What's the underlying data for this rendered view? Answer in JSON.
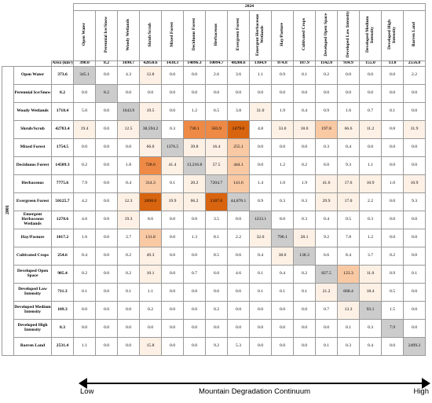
{
  "year_2024": "2024",
  "year_2001": "2001",
  "area_label": "Area (km²)",
  "classes": [
    "Open Water",
    "Perennial Ice/Snow",
    "Woody Wetlands",
    "Shrub/Scrub",
    "Mixed Forest",
    "Deciduous Forest",
    "Herbaceous",
    "Evergreen Forest",
    "Emergent Herbaceous Wetlands",
    "Hay/Pasture",
    "Cultivated Crops",
    "Developed Open Space",
    "Developed Low Intensity",
    "Developed Medium Intensity",
    "Developed High Intensity",
    "Barren Land"
  ],
  "col_areas_2024": [
    "390.0",
    "8.2",
    "1690.7",
    "42850.6",
    "1438.3",
    "14096.3",
    "10094.7",
    "48200.6",
    "1304.9",
    "874.8",
    "187.9",
    "1142.0",
    "934.9",
    "155.0",
    "13.0",
    "2556.8"
  ],
  "row_areas_2001": [
    "373.6",
    "8.2",
    "1718.4",
    "42783.4",
    "1754.5",
    "14509.3",
    "7775.6",
    "50125.7",
    "1278.6",
    "1017.2",
    "254.6",
    "985.4",
    "711.3",
    "109.3",
    "8.3",
    "2531.4"
  ],
  "cells": [
    [
      "345.1",
      "0.0",
      "4.3",
      "12.8",
      "0.0",
      "0.0",
      "2.6",
      "3.6",
      "1.1",
      "0.9",
      "0.1",
      "0.2",
      "0.0",
      "0.0",
      "0.0",
      "2.2"
    ],
    [
      "0.0",
      "8.2",
      "0.0",
      "0.0",
      "0.0",
      "0.0",
      "0.0",
      "0.0",
      "0.0",
      "0.0",
      "0.0",
      "0.0",
      "0.0",
      "0.0",
      "0.0",
      "0.0"
    ],
    [
      "5.0",
      "0.0",
      "1643.9",
      "19.5",
      "0.0",
      "1.2",
      "6.5",
      "3.8",
      "31.0",
      "1.9",
      "0.4",
      "0.9",
      "1.6",
      "0.7",
      "0.1",
      "0.0"
    ],
    [
      "19.4",
      "0.0",
      "12.5",
      "38,594.2",
      "0.3",
      "730.1",
      "583.9",
      "2479.0",
      "4.8",
      "33.0",
      "18.0",
      "197.8",
      "66.6",
      "11.2",
      "0.8",
      "31.9"
    ],
    [
      "0.0",
      "0.0",
      "0.0",
      "66.0",
      "1376.5",
      "39.8",
      "16.4",
      "255.1",
      "0.0",
      "0.0",
      "0.0",
      "0.3",
      "0.4",
      "0.0",
      "0.0",
      "0.0"
    ],
    [
      "0.2",
      "0.0",
      "1.8",
      "728.6",
      "41.4",
      "13,216.8",
      "57.5",
      "444.1",
      "0.0",
      "1.2",
      "0.2",
      "6.0",
      "9.3",
      "1.1",
      "0.0",
      "0.0"
    ],
    [
      "7.9",
      "0.0",
      "0.4",
      "314.3",
      "0.1",
      "20.2",
      "7204.7",
      "141.6",
      "1.4",
      "1.0",
      "1.9",
      "41.6",
      "17.6",
      "10.9",
      "1.0",
      "10.9"
    ],
    [
      "4.2",
      "0.0",
      "12.3",
      "2698.0",
      "19.9",
      "66.2",
      "2187.0",
      "44,878.1",
      "0.9",
      "0.3",
      "0.3",
      "29.9",
      "17.0",
      "2.2",
      "0.0",
      "9.3"
    ],
    [
      "4.6",
      "0.0",
      "19.3",
      "8.6",
      "0.0",
      "0.0",
      "3.5",
      "0.0",
      "1233.1",
      "8.0",
      "0.3",
      "0.4",
      "0.5",
      "0.3",
      "0.0",
      "0.0"
    ],
    [
      "1.6",
      "0.0",
      "3.7",
      "131.8",
      "0.0",
      "1.3",
      "8.1",
      "2.2",
      "32.0",
      "790.1",
      "28.1",
      "9.2",
      "7.8",
      "1.2",
      "0.0",
      "0.0"
    ],
    [
      "0.4",
      "0.0",
      "0.2",
      "49.3",
      "0.0",
      "0.0",
      "8.5",
      "0.6",
      "0.4",
      "38.0",
      "138.3",
      "6.6",
      "8.4",
      "3.7",
      "0.2",
      "0.0"
    ],
    [
      "0.2",
      "0.0",
      "0.2",
      "10.1",
      "0.0",
      "0.7",
      "6.0",
      "4.6",
      "0.1",
      "0.4",
      "0.2",
      "827.5",
      "123.3",
      "11.0",
      "0.9",
      "0.1"
    ],
    [
      "0.1",
      "0.0",
      "0.1",
      "1.1",
      "0.0",
      "0.0",
      "0.6",
      "0.6",
      "0.1",
      "0.1",
      "0.1",
      "21.2",
      "668.4",
      "18.4",
      "0.5",
      "0.0"
    ],
    [
      "0.0",
      "0.0",
      "0.0",
      "0.2",
      "0.0",
      "0.0",
      "0.2",
      "0.0",
      "0.0",
      "0.0",
      "0.0",
      "0.7",
      "13.3",
      "93.1",
      "1.5",
      "0.0"
    ],
    [
      "0.0",
      "0.0",
      "0.0",
      "0.0",
      "0.0",
      "0.0",
      "0.0",
      "0.0",
      "0.0",
      "0.0",
      "0.0",
      "0.0",
      "0.1",
      "0.3",
      "7.9",
      "0.0"
    ],
    [
      "1.1",
      "0.0",
      "0.0",
      "15.8",
      "0.0",
      "0.0",
      "9.2",
      "5.3",
      "0.0",
      "0.0",
      "0.0",
      "0.1",
      "0.3",
      "0.4",
      "0.0",
      "2499.3"
    ]
  ],
  "colors": {
    "diagonal": "#cccccc",
    "light": "#fdf1e5",
    "mid": "#f9c9a4",
    "strong": "#ee8a45",
    "deep": "#d8640f"
  },
  "scale": {
    "low": "Low",
    "middle": "Mountain Degradation Continuum",
    "high": "High"
  }
}
